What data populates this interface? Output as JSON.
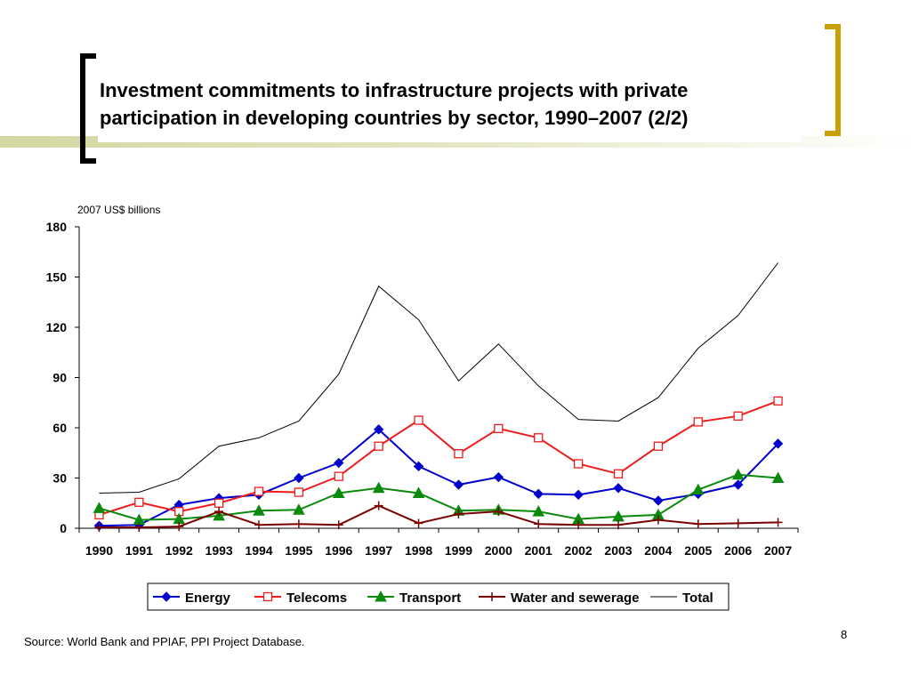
{
  "slide": {
    "title_line1": "Investment commitments to infrastructure projects with private",
    "title_line2": "participation in developing countries by sector, 1990–2007 (2/2)",
    "source": "Source: World Bank and PPIAF, PPI Project Database.",
    "page_number": "8",
    "colors": {
      "bracket_left": "#000000",
      "bracket_right": "#c9a000",
      "deco_bar": "#d4d7a0"
    }
  },
  "chart_data": {
    "type": "line",
    "ylabel": "2007 US$ billions",
    "ylim": [
      0,
      180
    ],
    "yticks": [
      0,
      30,
      60,
      90,
      120,
      150,
      180
    ],
    "grid": false,
    "legend_position": "bottom",
    "categories": [
      "1990",
      "1991",
      "1992",
      "1993",
      "1994",
      "1995",
      "1996",
      "1997",
      "1998",
      "1999",
      "2000",
      "2001",
      "2002",
      "2003",
      "2004",
      "2005",
      "2006",
      "2007"
    ],
    "series": [
      {
        "name": "Energy",
        "color": "#0000cc",
        "marker": "diamond",
        "values": [
          1.5,
          2,
          14,
          18,
          20,
          30,
          39,
          59,
          37,
          26,
          30.5,
          20.5,
          20,
          24,
          16.5,
          20.5,
          26,
          50.5
        ]
      },
      {
        "name": "Telecoms",
        "color": "#ee1c1c",
        "marker": "square",
        "values": [
          8,
          15.5,
          10,
          15,
          22,
          21.5,
          31,
          49,
          64.5,
          44.5,
          59.5,
          54,
          38.5,
          32.5,
          49,
          63.5,
          67,
          76
        ]
      },
      {
        "name": "Transport",
        "color": "#0a8a0a",
        "marker": "triangle",
        "values": [
          12,
          5,
          5.5,
          7.5,
          10.5,
          11,
          21,
          24,
          21,
          10.5,
          11,
          10,
          5.5,
          7,
          8,
          23,
          32,
          30
        ]
      },
      {
        "name": "Water and sewerage",
        "color": "#7a0000",
        "marker": "plus",
        "values": [
          0.5,
          0.5,
          1,
          10,
          2,
          2.5,
          2,
          13.5,
          3,
          8.5,
          10,
          2.5,
          2,
          2,
          5,
          2.5,
          3,
          3.5
        ]
      },
      {
        "name": "Total",
        "color": "#000000",
        "marker": "none",
        "values": [
          21,
          21.5,
          29.5,
          49,
          54,
          64,
          92,
          144.5,
          124.5,
          88,
          110,
          85,
          65,
          64,
          78,
          107.5,
          127,
          158.5
        ]
      }
    ]
  }
}
